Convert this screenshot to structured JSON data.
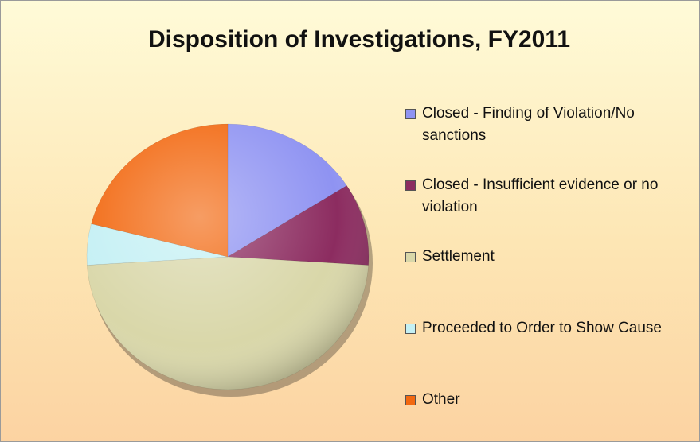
{
  "chart_data": {
    "type": "pie",
    "title": "Disposition of Investigations, FY2011",
    "categories": [
      "Closed - Finding of Violation/No sanctions",
      "Closed - Insufficient evidence or no violation",
      "Settlement",
      "Proceeded to Order to Show Cause",
      "Other"
    ],
    "values": [
      16,
      10,
      48,
      5,
      21
    ],
    "colors": [
      "#8f93f2",
      "#8c2c60",
      "#d9d7a9",
      "#c4f0f4",
      "#f26810"
    ],
    "legend": "right"
  }
}
